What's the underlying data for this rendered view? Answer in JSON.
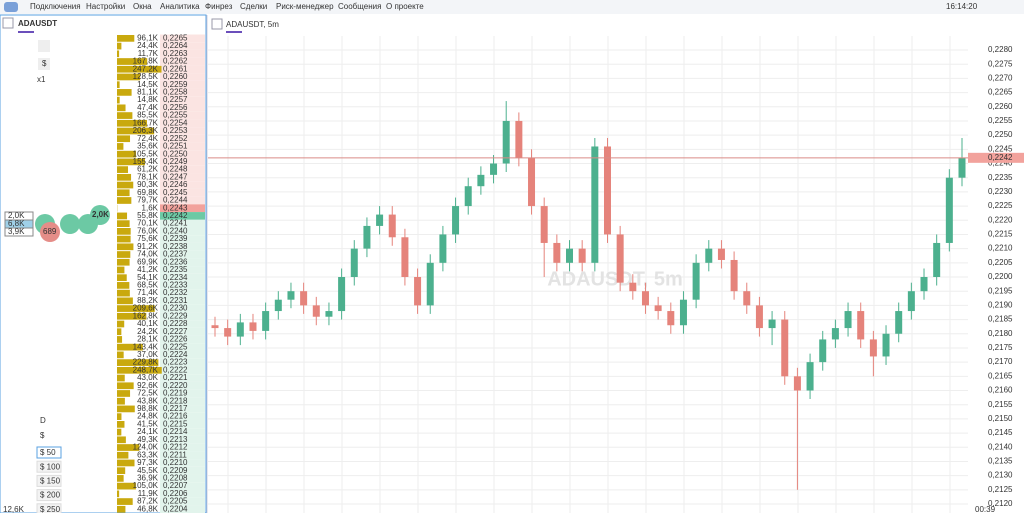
{
  "menu": [
    "Подключения",
    "Настройки",
    "Окна",
    "Аналитика",
    "Финрез",
    "Сделки",
    "Риск-менеджер",
    "Сообщения",
    "О проекте"
  ],
  "clock": "16:14:20",
  "left_panel": {
    "tab": "ADAUSDT",
    "multiplier": "x1",
    "currency": "$",
    "period": "D",
    "currency2": "$",
    "presets": [
      "$ 50",
      "$ 100",
      "$ 150",
      "$ 200",
      "$ 250"
    ],
    "footer": "12,6K",
    "cluster_boxes": [
      "2,0K",
      "6,8K",
      "3,9K"
    ],
    "cluster_bubbles": [
      "689",
      "2,0K"
    ]
  },
  "order_book": {
    "rows": [
      {
        "price": "0,2265",
        "volume": 96.1,
        "volume_label": "96,1K"
      },
      {
        "price": "0,2264",
        "volume": 24.4,
        "volume_label": "24,4K"
      },
      {
        "price": "0,2263",
        "volume": 11.7,
        "volume_label": "11,7K"
      },
      {
        "price": "0,2262",
        "volume": 167.8,
        "volume_label": "167,8K"
      },
      {
        "price": "0,2261",
        "volume": 247.2,
        "volume_label": "247,2K"
      },
      {
        "price": "0,2260",
        "volume": 128.5,
        "volume_label": "128,5K"
      },
      {
        "price": "0,2259",
        "volume": 14.5,
        "volume_label": "14,5K"
      },
      {
        "price": "0,2258",
        "volume": 81.1,
        "volume_label": "81,1K"
      },
      {
        "price": "0,2257",
        "volume": 14.8,
        "volume_label": "14,8K"
      },
      {
        "price": "0,2256",
        "volume": 47.4,
        "volume_label": "47,4K"
      },
      {
        "price": "0,2255",
        "volume": 85.5,
        "volume_label": "85,5K"
      },
      {
        "price": "0,2254",
        "volume": 166.7,
        "volume_label": "166,7K"
      },
      {
        "price": "0,2253",
        "volume": 206.3,
        "volume_label": "206,3K"
      },
      {
        "price": "0,2252",
        "volume": 72.4,
        "volume_label": "72,4K"
      },
      {
        "price": "0,2251",
        "volume": 35.6,
        "volume_label": "35,6K"
      },
      {
        "price": "0,2250",
        "volume": 105.5,
        "volume_label": "105,5K"
      },
      {
        "price": "0,2249",
        "volume": 155.4,
        "volume_label": "155,4K"
      },
      {
        "price": "0,2248",
        "volume": 61.2,
        "volume_label": "61,2K"
      },
      {
        "price": "0,2247",
        "volume": 78.1,
        "volume_label": "78,1K"
      },
      {
        "price": "0,2246",
        "volume": 90.3,
        "volume_label": "90,3K"
      },
      {
        "price": "0,2245",
        "volume": 69.8,
        "volume_label": "69,8K"
      },
      {
        "price": "0,2244",
        "volume": 79.7,
        "volume_label": "79,7K"
      },
      {
        "price": "0,2243",
        "volume": 1.6,
        "volume_label": "1,6K"
      },
      {
        "price": "0,2242",
        "volume": 55.8,
        "volume_label": "55,8K"
      },
      {
        "price": "0,2241",
        "volume": 70.1,
        "volume_label": "70,1K"
      },
      {
        "price": "0,2240",
        "volume": 76.0,
        "volume_label": "76,0K"
      },
      {
        "price": "0,2239",
        "volume": 75.6,
        "volume_label": "75,6K"
      },
      {
        "price": "0,2238",
        "volume": 91.2,
        "volume_label": "91,2K"
      },
      {
        "price": "0,2237",
        "volume": 74.0,
        "volume_label": "74,0K"
      },
      {
        "price": "0,2236",
        "volume": 69.9,
        "volume_label": "69,9K"
      },
      {
        "price": "0,2235",
        "volume": 41.2,
        "volume_label": "41,2K"
      },
      {
        "price": "0,2234",
        "volume": 54.1,
        "volume_label": "54,1K"
      },
      {
        "price": "0,2233",
        "volume": 68.5,
        "volume_label": "68,5K"
      },
      {
        "price": "0,2232",
        "volume": 71.4,
        "volume_label": "71,4K"
      },
      {
        "price": "0,2231",
        "volume": 88.2,
        "volume_label": "88,2K"
      },
      {
        "price": "0,2230",
        "volume": 209.6,
        "volume_label": "209,6K"
      },
      {
        "price": "0,2229",
        "volume": 162.8,
        "volume_label": "162,8K"
      },
      {
        "price": "0,2228",
        "volume": 40.1,
        "volume_label": "40,1K"
      },
      {
        "price": "0,2227",
        "volume": 24.2,
        "volume_label": "24,2K"
      },
      {
        "price": "0,2226",
        "volume": 28.1,
        "volume_label": "28,1K"
      },
      {
        "price": "0,2225",
        "volume": 143.4,
        "volume_label": "143,4K"
      },
      {
        "price": "0,2224",
        "volume": 37.0,
        "volume_label": "37,0K"
      },
      {
        "price": "0,2223",
        "volume": 229.8,
        "volume_label": "229,8K"
      },
      {
        "price": "0,2222",
        "volume": 248.7,
        "volume_label": "248,7K"
      },
      {
        "price": "0,2221",
        "volume": 43.0,
        "volume_label": "43,0K"
      },
      {
        "price": "0,2220",
        "volume": 92.6,
        "volume_label": "92,6K"
      },
      {
        "price": "0,2219",
        "volume": 72.5,
        "volume_label": "72,5K"
      },
      {
        "price": "0,2218",
        "volume": 43.8,
        "volume_label": "43,8K"
      },
      {
        "price": "0,2217",
        "volume": 98.8,
        "volume_label": "98,8K"
      },
      {
        "price": "0,2216",
        "volume": 24.8,
        "volume_label": "24,8K"
      },
      {
        "price": "0,2215",
        "volume": 41.5,
        "volume_label": "41,5K"
      },
      {
        "price": "0,2214",
        "volume": 24.1,
        "volume_label": "24,1K"
      },
      {
        "price": "0,2213",
        "volume": 49.3,
        "volume_label": "49,3K"
      },
      {
        "price": "0,2212",
        "volume": 124.0,
        "volume_label": "124,0K"
      },
      {
        "price": "0,2211",
        "volume": 63.3,
        "volume_label": "63,3K"
      },
      {
        "price": "0,2210",
        "volume": 97.3,
        "volume_label": "97,3K"
      },
      {
        "price": "0,2209",
        "volume": 45.5,
        "volume_label": "45,5K"
      },
      {
        "price": "0,2208",
        "volume": 36.9,
        "volume_label": "36,9K"
      },
      {
        "price": "0,2207",
        "volume": 105.0,
        "volume_label": "105,0K"
      },
      {
        "price": "0,2206",
        "volume": 11.9,
        "volume_label": "11,9K"
      },
      {
        "price": "0,2205",
        "volume": 87.2,
        "volume_label": "87,2K"
      },
      {
        "price": "0,2204",
        "volume": 46.8,
        "volume_label": "46,8K"
      }
    ]
  },
  "chart": {
    "tab": "ADAUSDT, 5m",
    "watermark": "ADAUSDT, 5m",
    "time_label": "00:39",
    "ylim": [
      0.212,
      0.228
    ],
    "yticks": [
      {
        "value": 0.212,
        "label": "0,2120"
      },
      {
        "value": 0.2125,
        "label": "0,2125"
      },
      {
        "value": 0.213,
        "label": "0,2130"
      },
      {
        "value": 0.2135,
        "label": "0,2135"
      },
      {
        "value": 0.214,
        "label": "0,2140"
      },
      {
        "value": 0.2145,
        "label": "0,2145"
      },
      {
        "value": 0.215,
        "label": "0,2150"
      },
      {
        "value": 0.2155,
        "label": "0,2155"
      },
      {
        "value": 0.216,
        "label": "0,2160"
      },
      {
        "value": 0.2165,
        "label": "0,2165"
      },
      {
        "value": 0.217,
        "label": "0,2170"
      },
      {
        "value": 0.2175,
        "label": "0,2175"
      },
      {
        "value": 0.218,
        "label": "0,2180"
      },
      {
        "value": 0.2185,
        "label": "0,2185"
      },
      {
        "value": 0.219,
        "label": "0,2190"
      },
      {
        "value": 0.2195,
        "label": "0,2195"
      },
      {
        "value": 0.22,
        "label": "0,2200"
      },
      {
        "value": 0.2205,
        "label": "0,2205"
      },
      {
        "value": 0.221,
        "label": "0,2210"
      },
      {
        "value": 0.2215,
        "label": "0,2215"
      },
      {
        "value": 0.222,
        "label": "0,2220"
      },
      {
        "value": 0.2225,
        "label": "0,2225"
      },
      {
        "value": 0.223,
        "label": "0,2230"
      },
      {
        "value": 0.2235,
        "label": "0,2235"
      },
      {
        "value": 0.224,
        "label": "0,2240"
      },
      {
        "value": 0.2245,
        "label": "0,2245"
      },
      {
        "value": 0.225,
        "label": "0,2250"
      },
      {
        "value": 0.2255,
        "label": "0,2255"
      },
      {
        "value": 0.226,
        "label": "0,2260"
      },
      {
        "value": 0.2265,
        "label": "0,2265"
      },
      {
        "value": 0.227,
        "label": "0,2270"
      },
      {
        "value": 0.2275,
        "label": "0,2275"
      },
      {
        "value": 0.228,
        "label": "0,2280"
      }
    ],
    "last_price": {
      "value": 0.2242,
      "label": "0,2242"
    },
    "candles": {
      "open": [
        0.2183,
        0.2182,
        0.2179,
        0.2184,
        0.2181,
        0.2188,
        0.2192,
        0.2195,
        0.219,
        0.2186,
        0.2188,
        0.22,
        0.221,
        0.2218,
        0.2222,
        0.2214,
        0.22,
        0.219,
        0.2205,
        0.2215,
        0.2225,
        0.2232,
        0.2236,
        0.224,
        0.2255,
        0.2242,
        0.2225,
        0.2212,
        0.2205,
        0.221,
        0.2205,
        0.2246,
        0.2215,
        0.2198,
        0.2195,
        0.219,
        0.2188,
        0.2183,
        0.2192,
        0.2205,
        0.221,
        0.2206,
        0.2195,
        0.219,
        0.2182,
        0.2185,
        0.2165,
        0.216,
        0.217,
        0.2178,
        0.2182,
        0.2188,
        0.2178,
        0.2172,
        0.218,
        0.2188,
        0.2195,
        0.22,
        0.2212,
        0.2235
      ],
      "high": [
        0.2186,
        0.2185,
        0.2187,
        0.2187,
        0.2191,
        0.2195,
        0.2198,
        0.2198,
        0.2193,
        0.2191,
        0.2203,
        0.2213,
        0.2221,
        0.2225,
        0.2225,
        0.2217,
        0.2203,
        0.2208,
        0.2218,
        0.2228,
        0.2235,
        0.2239,
        0.2243,
        0.2262,
        0.2258,
        0.2245,
        0.2228,
        0.2215,
        0.2213,
        0.2213,
        0.2249,
        0.2249,
        0.2218,
        0.2201,
        0.2198,
        0.2193,
        0.2191,
        0.2195,
        0.2208,
        0.2213,
        0.2213,
        0.2209,
        0.2198,
        0.2193,
        0.2188,
        0.2188,
        0.2168,
        0.2173,
        0.2181,
        0.2185,
        0.2191,
        0.2191,
        0.2181,
        0.2183,
        0.2191,
        0.2198,
        0.2203,
        0.2215,
        0.2238,
        0.2249
      ],
      "low": [
        0.2179,
        0.2176,
        0.2176,
        0.2178,
        0.2178,
        0.2185,
        0.2189,
        0.2187,
        0.2183,
        0.2183,
        0.2185,
        0.2197,
        0.2207,
        0.2215,
        0.2211,
        0.2197,
        0.2187,
        0.2187,
        0.2202,
        0.2212,
        0.2222,
        0.2229,
        0.2233,
        0.2237,
        0.2239,
        0.2222,
        0.22,
        0.2202,
        0.2202,
        0.2202,
        0.2202,
        0.2212,
        0.2195,
        0.2192,
        0.2187,
        0.2185,
        0.218,
        0.218,
        0.2189,
        0.2202,
        0.2203,
        0.2192,
        0.2187,
        0.2179,
        0.2176,
        0.2162,
        0.2125,
        0.2157,
        0.2167,
        0.2175,
        0.2179,
        0.2175,
        0.2165,
        0.2169,
        0.2177,
        0.2185,
        0.2192,
        0.2197,
        0.2209,
        0.2232
      ],
      "close": [
        0.2182,
        0.2179,
        0.2184,
        0.2181,
        0.2188,
        0.2192,
        0.2195,
        0.219,
        0.2186,
        0.2188,
        0.22,
        0.221,
        0.2218,
        0.2222,
        0.2214,
        0.22,
        0.219,
        0.2205,
        0.2215,
        0.2225,
        0.2232,
        0.2236,
        0.224,
        0.2255,
        0.2242,
        0.2225,
        0.2212,
        0.2205,
        0.221,
        0.2205,
        0.2246,
        0.2215,
        0.2198,
        0.2195,
        0.219,
        0.2188,
        0.2183,
        0.2192,
        0.2205,
        0.221,
        0.2206,
        0.2195,
        0.219,
        0.2182,
        0.2185,
        0.2165,
        0.216,
        0.217,
        0.2178,
        0.2182,
        0.2188,
        0.2178,
        0.2172,
        0.218,
        0.2188,
        0.2195,
        0.22,
        0.2212,
        0.2235,
        0.2242
      ]
    },
    "up_color": "#4cb08e",
    "down_color": "#e5837b"
  }
}
